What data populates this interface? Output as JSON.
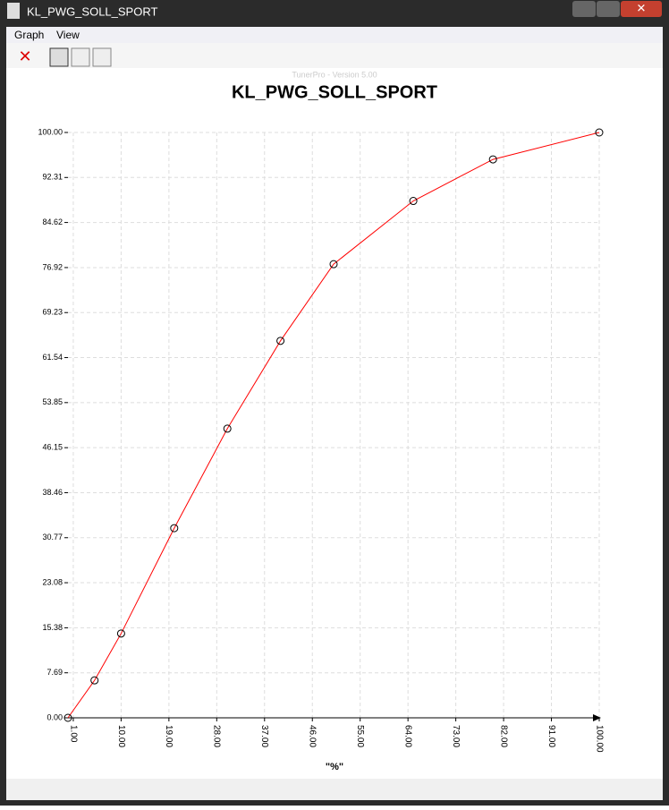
{
  "window": {
    "title": "KL_PWG_SOLL_SPORT",
    "menu": [
      "Graph",
      "View"
    ]
  },
  "chart_data": {
    "type": "line",
    "subtitle": "TunerPro - Version 5.00",
    "title": "KL_PWG_SOLL_SPORT",
    "x_label": "\"%\"",
    "x": [
      0,
      5,
      10,
      20,
      30,
      40,
      50,
      65,
      80,
      100
    ],
    "series": [
      {
        "color": "#ff0000",
        "values": [
          0,
          6.4,
          14.4,
          32.4,
          49.4,
          64.4,
          77.5,
          88.3,
          95.4,
          100
        ]
      }
    ],
    "xlim": [
      0,
      100
    ],
    "xticks": [
      {
        "value": 1,
        "label": "1.00"
      },
      {
        "value": 10,
        "label": "10.00"
      },
      {
        "value": 19,
        "label": "19.00"
      },
      {
        "value": 28,
        "label": "28.00"
      },
      {
        "value": 37,
        "label": "37.00"
      },
      {
        "value": 46,
        "label": "46.00"
      },
      {
        "value": 55,
        "label": "55.00"
      },
      {
        "value": 64,
        "label": "64.00"
      },
      {
        "value": 73,
        "label": "73.00"
      },
      {
        "value": 82,
        "label": "82.00"
      },
      {
        "value": 91,
        "label": "91.00"
      },
      {
        "value": 100,
        "label": "100.00"
      }
    ],
    "ylim": [
      0,
      100
    ],
    "yticks": [
      {
        "value": 0,
        "label": "0.00"
      },
      7.69,
      15.38,
      23.08,
      30.77,
      38.46,
      46.15,
      53.85,
      61.54,
      69.23,
      76.92,
      84.62,
      92.31,
      {
        "value": 100,
        "label": "100.00"
      }
    ],
    "grid": true
  }
}
